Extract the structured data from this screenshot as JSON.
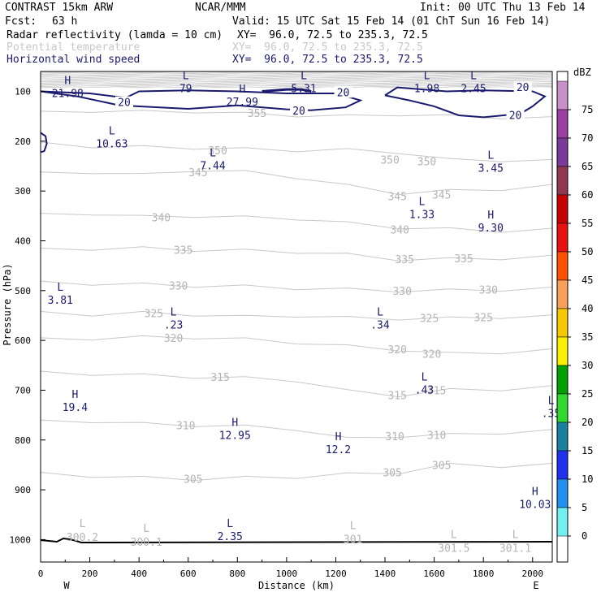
{
  "header": {
    "model_title": "CONTRAST 15km ARW",
    "org": "NCAR/MMM",
    "init": "Init: 00 UTC Thu 13 Feb 14",
    "fcst_label": "Fcst:",
    "fcst_value": "63 h",
    "valid": "Valid: 15 UTC Sat 15 Feb 14 (01 ChT Sun 16 Feb 14)",
    "fields": [
      {
        "name": "Radar reflectivity (lamda = 10 cm)",
        "xy": "XY=  96.0, 72.5 to 235.3, 72.5",
        "color": "#000000"
      },
      {
        "name": "Potential temperature",
        "xy": "XY=  96.0, 72.5 to 235.3, 72.5",
        "color": "#c8c8c8"
      },
      {
        "name": "Horizontal wind speed",
        "xy": "XY=  96.0, 72.5 to 235.3, 72.5",
        "color": "#1a1a6e"
      }
    ]
  },
  "chart_data": {
    "type": "contour",
    "xlabel": "Distance (km)",
    "ylabel": "Pressure (hPa)",
    "xlim": [
      0,
      2080
    ],
    "ylim": [
      1045,
      60
    ],
    "x_ticks": [
      0,
      200,
      400,
      600,
      800,
      1000,
      1200,
      1400,
      1600,
      1800,
      2000
    ],
    "y_ticks": [
      100,
      200,
      300,
      400,
      500,
      600,
      700,
      800,
      900,
      1000
    ],
    "direction_left": "W",
    "direction_right": "E",
    "colorbar": {
      "unit": "dBZ",
      "levels": [
        {
          "value": "75",
          "color": "#c890c8"
        },
        {
          "value": "70",
          "color": "#9a40a0"
        },
        {
          "value": "65",
          "color": "#7a3a9a"
        },
        {
          "value": "60",
          "color": "#903850"
        },
        {
          "value": "55",
          "color": "#c80000"
        },
        {
          "value": "50",
          "color": "#e81010"
        },
        {
          "value": "45",
          "color": "#ff5000"
        },
        {
          "value": "40",
          "color": "#f8a058"
        },
        {
          "value": "35",
          "color": "#f8c800"
        },
        {
          "value": "30",
          "color": "#f8f000"
        },
        {
          "value": "25",
          "color": "#00a000"
        },
        {
          "value": "20",
          "color": "#30d830"
        },
        {
          "value": "15",
          "color": "#1a80a0"
        },
        {
          "value": "10",
          "color": "#2030f0"
        },
        {
          "value": "5",
          "color": "#2090f0"
        },
        {
          "value": "0",
          "color": "#70f0f0"
        }
      ]
    },
    "theta_labels": [
      {
        "text": "355",
        "x": 880,
        "p": 143
      },
      {
        "text": "350",
        "x": 720,
        "p": 218
      },
      {
        "text": "350",
        "x": 1420,
        "p": 237
      },
      {
        "text": "350",
        "x": 1570,
        "p": 240
      },
      {
        "text": "345",
        "x": 640,
        "p": 262
      },
      {
        "text": "345",
        "x": 1450,
        "p": 310
      },
      {
        "text": "345",
        "x": 1630,
        "p": 307
      },
      {
        "text": "340",
        "x": 490,
        "p": 353
      },
      {
        "text": "340",
        "x": 1460,
        "p": 377
      },
      {
        "text": "335",
        "x": 580,
        "p": 418
      },
      {
        "text": "335",
        "x": 1480,
        "p": 437
      },
      {
        "text": "335",
        "x": 1720,
        "p": 435
      },
      {
        "text": "330",
        "x": 560,
        "p": 490
      },
      {
        "text": "330",
        "x": 1470,
        "p": 500
      },
      {
        "text": "330",
        "x": 1820,
        "p": 498
      },
      {
        "text": "325",
        "x": 460,
        "p": 545
      },
      {
        "text": "325",
        "x": 1580,
        "p": 555
      },
      {
        "text": "325",
        "x": 1800,
        "p": 553
      },
      {
        "text": "320",
        "x": 540,
        "p": 595
      },
      {
        "text": "320",
        "x": 1450,
        "p": 618
      },
      {
        "text": "320",
        "x": 1590,
        "p": 627
      },
      {
        "text": "315",
        "x": 730,
        "p": 673
      },
      {
        "text": "315",
        "x": 1450,
        "p": 710
      },
      {
        "text": "315",
        "x": 1610,
        "p": 700
      },
      {
        "text": "310",
        "x": 590,
        "p": 770
      },
      {
        "text": "310",
        "x": 1440,
        "p": 792
      },
      {
        "text": "310",
        "x": 1610,
        "p": 790
      },
      {
        "text": "305",
        "x": 620,
        "p": 878
      },
      {
        "text": "305",
        "x": 1430,
        "p": 865
      },
      {
        "text": "305",
        "x": 1630,
        "p": 850
      }
    ],
    "theta_extremes": [
      {
        "kind": "L",
        "value": "300.2",
        "x": 170,
        "p": 988
      },
      {
        "kind": "L",
        "value": "300.1",
        "x": 430,
        "p": 998
      },
      {
        "kind": "L",
        "value": "301",
        "x": 1270,
        "p": 992
      },
      {
        "kind": "L",
        "value": "301.5",
        "x": 1680,
        "p": 1010
      },
      {
        "kind": "L",
        "value": "301.1",
        "x": 1930,
        "p": 1010
      }
    ],
    "wind_contour_labels": [
      {
        "text": "20",
        "x": 340,
        "p": 123
      },
      {
        "text": "20",
        "x": 1230,
        "p": 103
      },
      {
        "text": "20",
        "x": 1050,
        "p": 140
      },
      {
        "text": "20",
        "x": 1960,
        "p": 93
      },
      {
        "text": "20",
        "x": 1930,
        "p": 149
      }
    ],
    "wind_extremes": [
      {
        "kind": "H",
        "value": "21.98",
        "x": 110,
        "p": 95
      },
      {
        "kind": "L",
        "value": "79",
        "x": 590,
        "p": 85
      },
      {
        "kind": "H",
        "value": "27.99",
        "x": 820,
        "p": 112
      },
      {
        "kind": "L",
        "value": "5.31",
        "x": 1070,
        "p": 85
      },
      {
        "kind": "L",
        "value": "1.98",
        "x": 1570,
        "p": 85
      },
      {
        "kind": "L",
        "value": "2.45",
        "x": 1760,
        "p": 85
      },
      {
        "kind": "L",
        "value": "10.63",
        "x": 290,
        "p": 196
      },
      {
        "kind": "L",
        "value": "7.44",
        "x": 700,
        "p": 240
      },
      {
        "kind": "L",
        "value": "3.45",
        "x": 1830,
        "p": 245
      },
      {
        "kind": "L",
        "value": "1.33",
        "x": 1550,
        "p": 338
      },
      {
        "kind": "H",
        "value": "9.30",
        "x": 1830,
        "p": 365
      },
      {
        "kind": "L",
        "value": "3.81",
        "x": 80,
        "p": 510
      },
      {
        "kind": "L",
        "value": ".23",
        "x": 540,
        "p": 560
      },
      {
        "kind": "L",
        "value": ".34",
        "x": 1380,
        "p": 560
      },
      {
        "kind": "L",
        "value": ".43",
        "x": 1560,
        "p": 690
      },
      {
        "kind": "H",
        "value": "19.4",
        "x": 140,
        "p": 725
      },
      {
        "kind": "H",
        "value": "12.95",
        "x": 790,
        "p": 782
      },
      {
        "kind": "H",
        "value": "12.2",
        "x": 1210,
        "p": 810
      },
      {
        "kind": "H",
        "value": "10.03",
        "x": 2010,
        "p": 920
      },
      {
        "kind": "L",
        "value": "2.35",
        "x": 770,
        "p": 985
      },
      {
        "kind": "L",
        "value": ".35",
        "x": 2075,
        "p": 738
      }
    ]
  }
}
